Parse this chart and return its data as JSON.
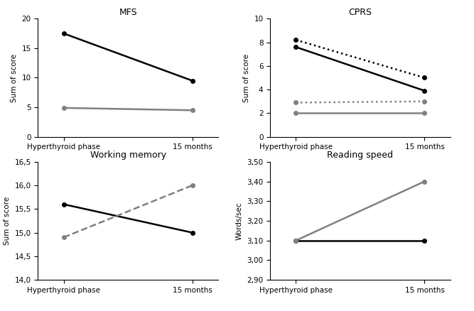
{
  "mfs": {
    "title": "MFS",
    "ylabel": "Sum of score",
    "xlabel_ticks": [
      "Hyperthyroid phase",
      "15 months"
    ],
    "graves": [
      17.5,
      9.5
    ],
    "controls": [
      4.9,
      4.5
    ],
    "ylim": [
      0,
      20
    ],
    "yticks": [
      0,
      5,
      10,
      15,
      20
    ]
  },
  "cprs": {
    "title": "CPRS",
    "ylabel": "Sum of score",
    "xlabel_ticks": [
      "Hyperthyroid phase",
      "15 months"
    ],
    "graves_depression": [
      7.6,
      3.9
    ],
    "controls_depression": [
      2.0,
      2.0
    ],
    "graves_anxiety": [
      8.2,
      5.0
    ],
    "controls_anxiety": [
      2.9,
      3.0
    ],
    "ylim": [
      0,
      10
    ],
    "yticks": [
      0,
      2,
      4,
      6,
      8,
      10
    ]
  },
  "wm": {
    "title": "Working memory",
    "ylabel": "Sum of score",
    "xlabel_ticks": [
      "Hyperthyroid phase",
      "15 months"
    ],
    "graves": [
      15.6,
      15.0
    ],
    "controls": [
      14.9,
      16.0
    ],
    "ylim": [
      14,
      16.5
    ],
    "yticks": [
      14,
      14.5,
      15,
      15.5,
      16,
      16.5
    ]
  },
  "rs": {
    "title": "Reading speed",
    "ylabel": "Words/sec",
    "xlabel_ticks": [
      "Hyperthyroid phase",
      "15 months"
    ],
    "graves": [
      3.1,
      3.1
    ],
    "controls": [
      3.1,
      3.4
    ],
    "ylim": [
      2.9,
      3.5
    ],
    "yticks": [
      2.9,
      3.0,
      3.1,
      3.2,
      3.3,
      3.4,
      3.5
    ]
  },
  "colors": {
    "black": "#000000",
    "gray": "#808080"
  }
}
